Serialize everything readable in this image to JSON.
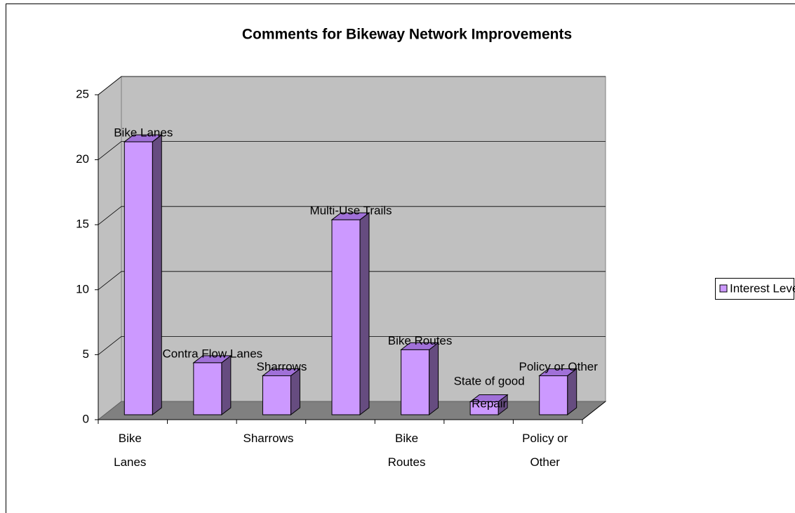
{
  "chart_data": {
    "type": "bar3d",
    "title": "Comments for Bikeway Network Improvements",
    "categories": [
      "Bike Lanes",
      null,
      "Sharrows",
      null,
      "Bike Routes",
      null,
      "Policy or Other"
    ],
    "series": [
      {
        "name": "Interest Level",
        "color": "#cc99ff",
        "values": [
          21,
          4,
          3,
          15,
          5,
          1,
          3
        ],
        "data_labels": [
          "Bike Lanes",
          "Contra Flow Lanes",
          "Sharrows",
          "Multi-Use Trails",
          "Bike Routes",
          "State of good Repair",
          "Policy or Other"
        ]
      }
    ],
    "ylim": [
      0,
      25
    ],
    "yticks": [
      0,
      5,
      10,
      15,
      20,
      25
    ],
    "grid": true,
    "legend": "right"
  }
}
